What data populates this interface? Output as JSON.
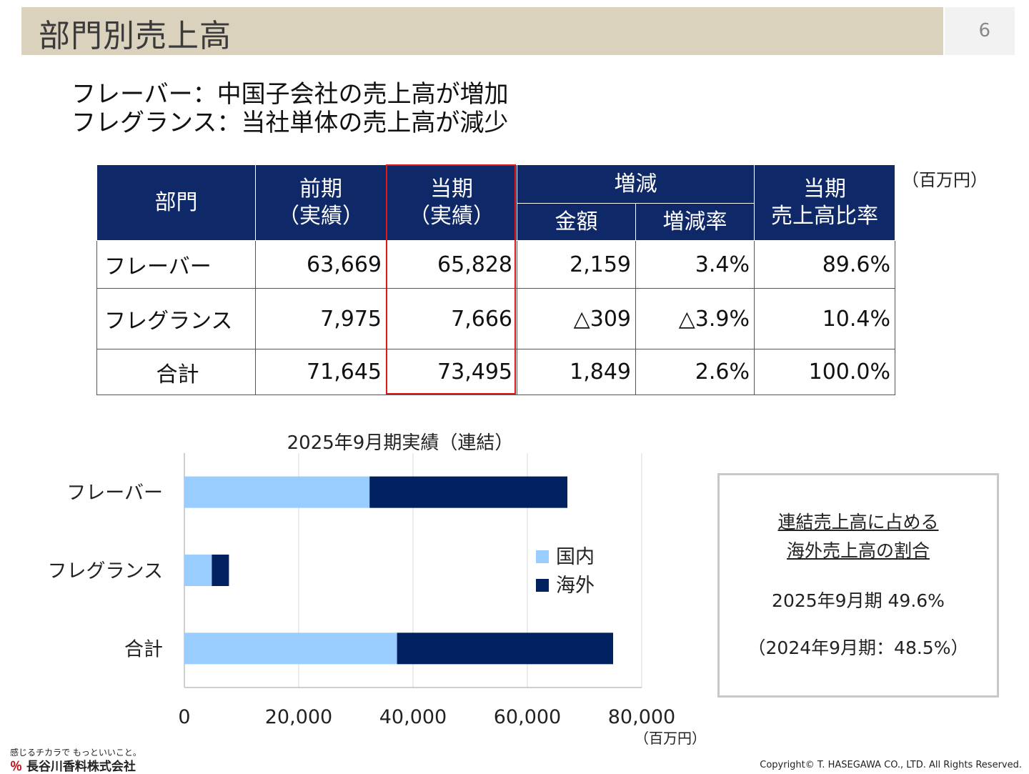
{
  "header": {
    "title": "部門別売上高",
    "page_number": "6"
  },
  "headlines": [
    "フレーバー：中国子会社の売上高が増加",
    "フレグランス：当社単体の売上高が減少"
  ],
  "table": {
    "unit": "（百万円）",
    "headers": {
      "dept": "部門",
      "prev_line1": "前期",
      "prev_line2": "（実績）",
      "curr_line1": "当期",
      "curr_line2": "（実績）",
      "change": "増減",
      "amount": "金額",
      "rate": "増減率",
      "ratio_line1": "当期",
      "ratio_line2": "売上高比率"
    },
    "rows": [
      {
        "dept": "フレーバー",
        "prev": "63,669",
        "curr": "65,828",
        "amount": "2,159",
        "rate": "3.4%",
        "ratio": "89.6%"
      },
      {
        "dept": "フレグランス",
        "prev": "7,975",
        "curr": "7,666",
        "amount": "△309",
        "rate": "△3.9%",
        "ratio": "10.4%"
      },
      {
        "dept": "合計",
        "prev": "71,645",
        "curr": "73,495",
        "amount": "1,849",
        "rate": "2.6%",
        "ratio": "100.0%"
      }
    ]
  },
  "chart_data": {
    "type": "bar",
    "orientation": "horizontal",
    "stacked": true,
    "title": "2025年9月期実績（連結）",
    "unit": "（百万円）",
    "categories": [
      "フレーバー",
      "フレグランス",
      "合計"
    ],
    "series": [
      {
        "name": "国内",
        "color": "#99ccff",
        "values": [
          32400,
          4800,
          37200
        ]
      },
      {
        "name": "海外",
        "color": "#002060",
        "values": [
          34600,
          3000,
          37800
        ]
      }
    ],
    "xlim": [
      0,
      80000
    ],
    "xticks": [
      "0",
      "20,000",
      "40,000",
      "60,000",
      "80,000"
    ],
    "xtick_values": [
      0,
      20000,
      40000,
      60000,
      80000
    ],
    "grid": true,
    "legend": "right"
  },
  "info": {
    "title_line1": "連結売上高に占める",
    "title_line2": "海外売上高の割合",
    "current": "2025年9月期 49.6%",
    "previous": "（2024年9月期：48.5%）"
  },
  "footer": {
    "tagline": "感じるチカラで もっといいこと。",
    "company": "長谷川香料株式会社",
    "copyright": "Copyright© T. HASEGAWA CO., LTD. All Rights Reserved."
  }
}
